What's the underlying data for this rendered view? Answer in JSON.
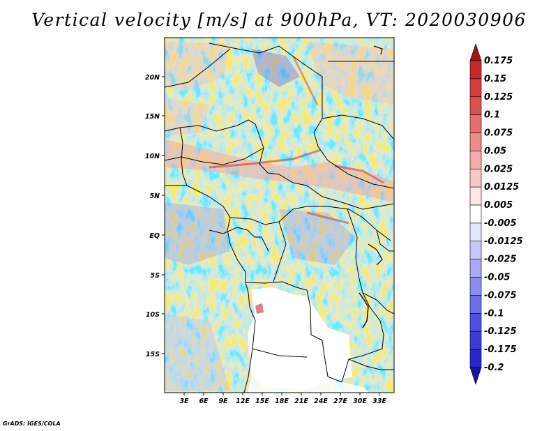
{
  "title": "Vertical velocity [m/s] at 900hPa, VT: 2020030906",
  "credit": "GrADS: IGES/COLA",
  "map": {
    "lat_labels": [
      "20N",
      "15N",
      "10N",
      "5N",
      "EQ",
      "5S",
      "10S",
      "15S"
    ],
    "lon_labels": [
      "3E",
      "6E",
      "9E",
      "12E",
      "15E",
      "18E",
      "21E",
      "24E",
      "27E",
      "30E",
      "33E"
    ]
  },
  "colorbar": {
    "levels": [
      "0.175",
      "0.15",
      "0.125",
      "0.1",
      "0.075",
      "0.05",
      "0.025",
      "0.0125",
      "0.005",
      "-0.005",
      "-0.0125",
      "-0.025",
      "-0.05",
      "-0.075",
      "-0.1",
      "-0.125",
      "-0.175",
      "-0.2"
    ],
    "colors": [
      "#a01414",
      "#c42828",
      "#d23c3c",
      "#dc5050",
      "#e66e6e",
      "#ec8c8c",
      "#f2aaaa",
      "#f8c8c8",
      "#fce6e6",
      "#ffffff",
      "#e6e6fc",
      "#c8c8f8",
      "#aaaaf2",
      "#8c8cec",
      "#6e6ee6",
      "#5050dc",
      "#3c3cd2",
      "#2828c4",
      "#1414a0"
    ]
  }
}
